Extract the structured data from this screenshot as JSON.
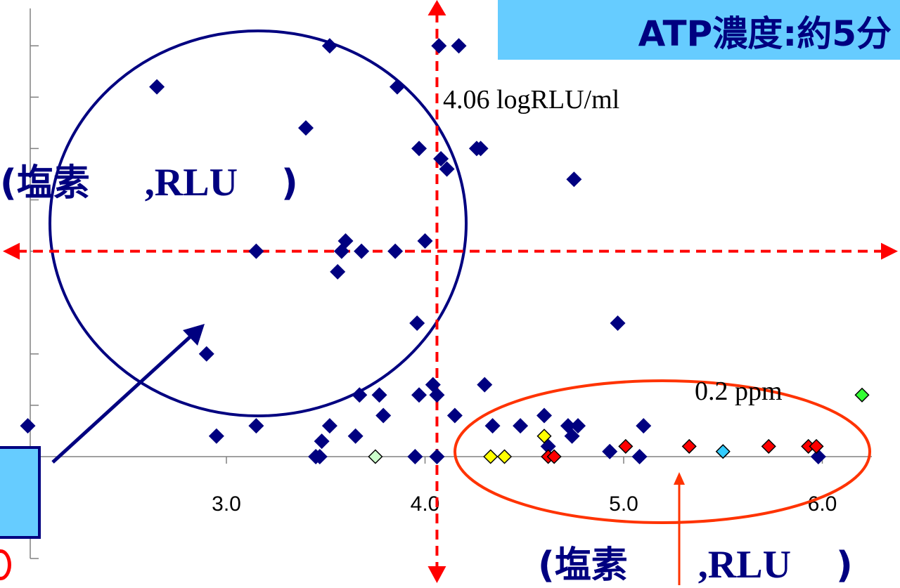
{
  "title": "ATP濃度:約5分",
  "threshold_x_label": "4.06 logRLU/ml",
  "threshold_y_label": "0.2 ppm",
  "group_labels": {
    "upper": {
      "open": "(",
      "chlorine": "塩素",
      "sep": ",",
      "rlu": "RLU",
      "close": ")"
    },
    "lower": {
      "open": "(",
      "chlorine": "塩素",
      "sep": ",",
      "rlu": "RLU",
      "close": ")"
    }
  },
  "colors": {
    "navy": "#000080",
    "red_dashed": "#ff0000",
    "orange_circle": "#ff3300",
    "title_bg": "#66ccff"
  },
  "chart_data": {
    "type": "scatter",
    "title": "ATP濃度:約5分",
    "xlabel": "",
    "ylabel": "",
    "xlim": [
      1.9,
      6.3
    ],
    "ylim": [
      -0.05,
      0.45
    ],
    "x_ticks": [
      "3.0",
      "4.0",
      "5.0",
      "6.0"
    ],
    "x_tick_values": [
      3.0,
      4.0,
      5.0,
      6.0
    ],
    "y_tick_values": [
      0.05,
      0.1,
      0.2,
      0.25,
      0.3,
      0.35,
      0.4
    ],
    "threshold_x": 4.06,
    "threshold_y": 0.2,
    "series": [
      {
        "marker": "diamond",
        "color": "#000080",
        "points": [
          [
            2.0,
            0.03
          ],
          [
            2.65,
            0.36
          ],
          [
            2.9,
            0.1
          ],
          [
            2.95,
            0.02
          ],
          [
            3.15,
            0.2
          ],
          [
            3.15,
            0.03
          ],
          [
            3.4,
            0.32
          ],
          [
            3.45,
            0.0
          ],
          [
            3.47,
            0.0
          ],
          [
            3.48,
            0.015
          ],
          [
            3.52,
            0.4
          ],
          [
            3.52,
            0.03
          ],
          [
            3.56,
            0.18
          ],
          [
            3.58,
            0.2
          ],
          [
            3.6,
            0.21
          ],
          [
            3.65,
            0.02
          ],
          [
            3.67,
            0.06
          ],
          [
            3.68,
            0.2
          ],
          [
            3.77,
            0.06
          ],
          [
            3.79,
            0.04
          ],
          [
            3.85,
            0.2
          ],
          [
            3.86,
            0.36
          ],
          [
            3.95,
            0.0
          ],
          [
            3.96,
            0.13
          ],
          [
            3.97,
            0.3
          ],
          [
            3.97,
            0.06
          ],
          [
            4.0,
            0.21
          ],
          [
            4.04,
            0.07
          ],
          [
            4.06,
            0.06
          ],
          [
            4.06,
            0.0
          ],
          [
            4.07,
            0.4
          ],
          [
            4.08,
            0.29
          ],
          [
            4.11,
            0.28
          ],
          [
            4.15,
            0.04
          ],
          [
            4.17,
            0.4
          ],
          [
            4.26,
            0.3
          ],
          [
            4.28,
            0.3
          ],
          [
            4.3,
            0.07
          ],
          [
            4.34,
            0.03
          ],
          [
            4.48,
            0.03
          ],
          [
            4.6,
            0.04
          ],
          [
            4.62,
            0.01
          ],
          [
            4.72,
            0.03
          ],
          [
            4.75,
            0.27
          ],
          [
            4.74,
            0.02
          ],
          [
            4.77,
            0.03
          ],
          [
            4.93,
            0.005
          ],
          [
            4.97,
            0.13
          ],
          [
            5.08,
            0.0
          ],
          [
            5.1,
            0.03
          ],
          [
            5.98,
            0.0
          ]
        ]
      },
      {
        "marker": "diamond",
        "color": "#ff0000",
        "points": [
          [
            4.62,
            0.0
          ],
          [
            4.65,
            0.0
          ],
          [
            5.01,
            0.01
          ],
          [
            5.33,
            0.01
          ],
          [
            5.73,
            0.01
          ],
          [
            5.93,
            0.01
          ],
          [
            5.97,
            0.01
          ]
        ]
      },
      {
        "marker": "diamond",
        "color": "#ffff00",
        "points": [
          [
            4.33,
            0.0
          ],
          [
            4.4,
            0.0
          ],
          [
            4.6,
            0.02
          ]
        ]
      },
      {
        "marker": "diamond",
        "color": "#ccffcc",
        "points": [
          [
            3.75,
            0.0
          ]
        ]
      },
      {
        "marker": "diamond",
        "color": "#33ccff",
        "points": [
          [
            5.5,
            0.005
          ]
        ]
      },
      {
        "marker": "diamond",
        "color": "#33ff33",
        "points": [
          [
            6.2,
            0.06
          ]
        ]
      }
    ]
  }
}
